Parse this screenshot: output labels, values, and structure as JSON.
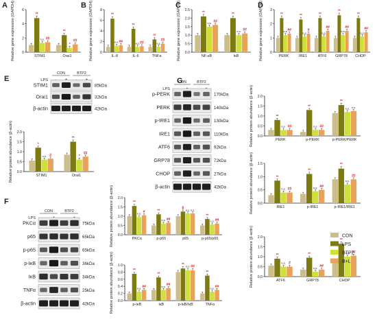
{
  "colors": {
    "CON": "#cdbd8a",
    "LPS": "#7c7a10",
    "BTP2": "#cfe03a",
    "B+L": "#e9a25a",
    "axis": "#222222",
    "star": "#d42a2a",
    "ns": "#555555"
  },
  "legend": {
    "items": [
      "CON",
      "LPS",
      "BTP2",
      "B+L"
    ]
  },
  "blot_common": {
    "lps_label": "LPS",
    "con_label": "CON",
    "btp2_label": "BTP2",
    "lps_signs": [
      "-",
      "+",
      "-",
      "+"
    ]
  },
  "blots": [
    {
      "id": "E",
      "label": "E",
      "rows": [
        {
          "name": "STIM1",
          "kda": "85kDa",
          "intensity": [
            0.45,
            0.9,
            0.35,
            0.6
          ]
        },
        {
          "name": "Orai1",
          "kda": "32kDa",
          "intensity": [
            0.55,
            0.95,
            0.45,
            0.75
          ]
        },
        {
          "name": "β-actin",
          "kda": "42kDa",
          "intensity": [
            0.9,
            0.9,
            0.9,
            0.9
          ]
        }
      ]
    },
    {
      "id": "F",
      "label": "F",
      "rows": [
        {
          "name": "PKCα",
          "kda": "75kDa",
          "intensity": [
            0.7,
            0.9,
            0.7,
            0.8
          ]
        },
        {
          "name": "p65",
          "kda": "65kDa",
          "intensity": [
            0.75,
            0.8,
            0.75,
            0.8
          ]
        },
        {
          "name": "p-p65",
          "kda": "65kDa",
          "intensity": [
            0.5,
            0.95,
            0.55,
            0.6
          ]
        },
        {
          "name": "p-IκB",
          "kda": "36kDa",
          "intensity": [
            0.4,
            0.95,
            0.45,
            0.55
          ]
        },
        {
          "name": "IκB",
          "kda": "34kDa",
          "intensity": [
            0.8,
            0.6,
            0.75,
            0.7
          ]
        },
        {
          "name": "TNFα",
          "kda": "25kDa",
          "intensity": [
            0.4,
            0.85,
            0.45,
            0.55
          ]
        },
        {
          "name": "β-actin",
          "kda": "42kDa",
          "intensity": [
            0.9,
            0.9,
            0.9,
            0.9
          ]
        }
      ]
    },
    {
      "id": "G",
      "label": "G",
      "rows": [
        {
          "name": "p-PERK",
          "kda": "170kDa",
          "intensity": [
            0.4,
            0.9,
            0.3,
            0.4
          ]
        },
        {
          "name": "PERK",
          "kda": "140kDa",
          "intensity": [
            0.7,
            0.85,
            0.6,
            0.65
          ]
        },
        {
          "name": "p-IRE1",
          "kda": "130kDa",
          "intensity": [
            0.4,
            0.95,
            0.35,
            0.45
          ]
        },
        {
          "name": "IRE1",
          "kda": "110kDa",
          "intensity": [
            0.5,
            0.95,
            0.45,
            0.5
          ]
        },
        {
          "name": "ATF6",
          "kda": "92kDa",
          "intensity": [
            0.5,
            0.9,
            0.45,
            0.55
          ]
        },
        {
          "name": "GRP78",
          "kda": "72kDa",
          "intensity": [
            0.5,
            0.9,
            0.5,
            0.55
          ]
        },
        {
          "name": "CHOP",
          "kda": "27kDa",
          "intensity": [
            0.45,
            0.9,
            0.4,
            0.5
          ]
        },
        {
          "name": "β-actin",
          "kda": "42kDa",
          "intensity": [
            0.9,
            0.9,
            0.9,
            0.9
          ]
        }
      ]
    }
  ],
  "chart_data": [
    {
      "id": "A",
      "label": "A",
      "type": "bar",
      "title": "",
      "xlabel": "",
      "ylabel": "Relative gene expression (GAPDH)",
      "ylim": [
        0,
        6
      ],
      "yticks": [
        0,
        2,
        4,
        6
      ],
      "categories": [
        "STIM1",
        "Orai1"
      ],
      "series": [
        {
          "name": "CON",
          "values": [
            1.0,
            1.0
          ]
        },
        {
          "name": "LPS",
          "values": [
            4.8,
            2.4
          ]
        },
        {
          "name": "BTP2",
          "values": [
            1.3,
            0.6
          ]
        },
        {
          "name": "B+L",
          "values": [
            1.4,
            1.1
          ]
        }
      ],
      "annotations": [
        [
          "",
          "**",
          "n.s.",
          "##"
        ],
        [
          "",
          "**",
          "*",
          "##"
        ]
      ]
    },
    {
      "id": "B",
      "label": "B",
      "type": "bar",
      "title": "",
      "xlabel": "",
      "ylabel": "Relative gene expression (GAPDH)",
      "ylim": [
        0,
        8
      ],
      "yticks": [
        0,
        2,
        4,
        6,
        8
      ],
      "categories": [
        "IL-8",
        "IL-6",
        "TNFα"
      ],
      "series": [
        {
          "name": "CON",
          "values": [
            1.0,
            1.0,
            1.0
          ]
        },
        {
          "name": "LPS",
          "values": [
            6.3,
            4.4,
            2.4
          ]
        },
        {
          "name": "BTP2",
          "values": [
            1.2,
            1.0,
            1.0
          ]
        },
        {
          "name": "B+L",
          "values": [
            1.3,
            1.1,
            1.6
          ]
        }
      ],
      "annotations": [
        [
          "",
          "**",
          "n.s.",
          "##"
        ],
        [
          "",
          "**",
          "n.s.",
          "##"
        ],
        [
          "",
          "**",
          "n.s.",
          "##"
        ]
      ]
    },
    {
      "id": "C",
      "label": "C",
      "type": "bar",
      "title": "",
      "xlabel": "",
      "ylabel": "Relative gene expression (GAPDH)",
      "ylim": [
        0,
        2.5
      ],
      "yticks": [
        0.0,
        0.5,
        1.0,
        1.5,
        2.0,
        2.5
      ],
      "categories": [
        "NF-κB",
        "IκB"
      ],
      "series": [
        {
          "name": "CON",
          "values": [
            1.0,
            1.0
          ]
        },
        {
          "name": "LPS",
          "values": [
            2.1,
            2.0
          ]
        },
        {
          "name": "BTP2",
          "values": [
            1.5,
            1.0
          ]
        },
        {
          "name": "B+L",
          "values": [
            1.6,
            1.1
          ]
        }
      ],
      "annotations": [
        [
          "",
          "**",
          "n.s.",
          "##"
        ],
        [
          "",
          "**",
          "n.s.",
          "##"
        ]
      ]
    },
    {
      "id": "D",
      "label": "D",
      "type": "bar",
      "title": "",
      "xlabel": "",
      "ylabel": "Relative gene expression (GAPDH)",
      "ylim": [
        0,
        3
      ],
      "yticks": [
        0,
        1,
        2,
        3
      ],
      "categories": [
        "PERK",
        "IRE1",
        "ATF6",
        "GRP78",
        "CHOP"
      ],
      "series": [
        {
          "name": "CON",
          "values": [
            1.0,
            1.0,
            1.0,
            1.0,
            1.0
          ]
        },
        {
          "name": "LPS",
          "values": [
            2.4,
            2.3,
            2.4,
            2.6,
            2.4
          ]
        },
        {
          "name": "BTP2",
          "values": [
            1.2,
            1.1,
            1.1,
            1.2,
            1.1
          ]
        },
        {
          "name": "B+L",
          "values": [
            1.3,
            1.3,
            1.5,
            1.5,
            1.4
          ]
        }
      ],
      "annotations": [
        [
          "",
          "**",
          "n.s.",
          "##"
        ],
        [
          "",
          "**",
          "n.s.",
          "#"
        ],
        [
          "",
          "**",
          "n.s.",
          "##"
        ],
        [
          "",
          "**",
          "n.s.",
          "##"
        ],
        [
          "",
          "**",
          "n.s.",
          "##"
        ]
      ]
    },
    {
      "id": "E2",
      "label": "",
      "type": "bar",
      "title": "",
      "xlabel": "",
      "ylabel": "Relative protein abundance (β-actin)",
      "ylim": [
        0,
        2.0
      ],
      "yticks": [
        0.0,
        0.5,
        1.0,
        1.5,
        2.0
      ],
      "categories": [
        "STIM1",
        "Orai1"
      ],
      "series": [
        {
          "name": "CON",
          "values": [
            0.55,
            0.85
          ]
        },
        {
          "name": "LPS",
          "values": [
            1.2,
            1.5
          ]
        },
        {
          "name": "BTP2",
          "values": [
            0.6,
            0.6
          ]
        },
        {
          "name": "B+L",
          "values": [
            0.65,
            0.75
          ]
        }
      ],
      "annotations": [
        [
          "",
          "*",
          "n.s.",
          "#"
        ],
        [
          "",
          "**",
          "*",
          "##"
        ]
      ]
    },
    {
      "id": "F1",
      "label": "",
      "type": "bar",
      "title": "",
      "xlabel": "",
      "ylabel": "Relative protein abundance (β-actin)",
      "ylim": [
        0,
        2.0
      ],
      "yticks": [
        0.0,
        0.5,
        1.0,
        1.5,
        2.0
      ],
      "categories": [
        "PKCα",
        "p-p65",
        "p65",
        "p-p65/p65"
      ],
      "series": [
        {
          "name": "CON",
          "values": [
            1.0,
            0.5,
            1.0,
            0.5
          ]
        },
        {
          "name": "LPS",
          "values": [
            1.55,
            1.1,
            1.25,
            0.85
          ]
        },
        {
          "name": "BTP2",
          "values": [
            0.95,
            0.6,
            1.15,
            0.55
          ]
        },
        {
          "name": "B+L",
          "values": [
            1.05,
            0.65,
            1.15,
            0.6
          ]
        }
      ],
      "annotations": [
        [
          "",
          "**",
          "n.s.",
          "#"
        ],
        [
          "",
          "**",
          "n.s.",
          "##"
        ],
        [
          "",
          "$",
          "n.s.",
          "n.s."
        ],
        [
          "",
          "**",
          "n.s.",
          "##"
        ]
      ]
    },
    {
      "id": "F2",
      "label": "",
      "type": "bar",
      "title": "",
      "xlabel": "",
      "ylabel": "Relative protein abundance (β-actin)",
      "ylim": [
        0,
        1.0
      ],
      "yticks": [
        0.0,
        0.2,
        0.4,
        0.6,
        0.8,
        1.0
      ],
      "categories": [
        "p-IκB",
        "IκB",
        "p-IκB/IκB",
        "TNFα"
      ],
      "series": [
        {
          "name": "CON",
          "values": [
            0.2,
            0.3,
            0.8,
            0.2
          ]
        },
        {
          "name": "LPS",
          "values": [
            0.75,
            0.65,
            0.9,
            0.7
          ]
        },
        {
          "name": "BTP2",
          "values": [
            0.25,
            0.3,
            0.85,
            0.25
          ]
        },
        {
          "name": "B+L",
          "values": [
            0.3,
            0.35,
            0.85,
            0.3
          ]
        }
      ],
      "annotations": [
        [
          "",
          "**",
          "n.s.",
          "##"
        ],
        [
          "",
          "**",
          "n.s.",
          "##"
        ],
        [
          "",
          "**",
          "n.s.",
          "##"
        ],
        [
          "",
          "**",
          "n.s.",
          "##"
        ]
      ]
    },
    {
      "id": "G1",
      "label": "",
      "type": "bar",
      "title": "",
      "xlabel": "",
      "ylabel": "Relative protein abundance (β-actin)",
      "ylim": [
        0,
        2.0
      ],
      "yticks": [
        0.0,
        0.5,
        1.0,
        1.5,
        2.0
      ],
      "categories": [
        "PERK",
        "p-PERK",
        "p-PERK/PERK"
      ],
      "series": [
        {
          "name": "CON",
          "values": [
            0.3,
            0.2,
            1.15
          ]
        },
        {
          "name": "LPS",
          "values": [
            0.8,
            1.3,
            1.55
          ]
        },
        {
          "name": "BTP2",
          "values": [
            0.3,
            0.3,
            1.2
          ]
        },
        {
          "name": "B+L",
          "values": [
            0.3,
            0.3,
            1.25
          ]
        }
      ],
      "annotations": [
        [
          "",
          "**",
          "n.s.",
          "##"
        ],
        [
          "",
          "**",
          "n.s.",
          "##"
        ],
        [
          "",
          "**",
          "n.s.",
          "n.s."
        ]
      ]
    },
    {
      "id": "G2",
      "label": "",
      "type": "bar",
      "title": "",
      "xlabel": "",
      "ylabel": "Relative protein abundance (β-actin)",
      "ylim": [
        0,
        1.5
      ],
      "yticks": [
        0.0,
        0.5,
        1.0,
        1.5
      ],
      "categories": [
        "IRE1",
        "p-IRE1",
        "p-IRE1/IRE1"
      ],
      "series": [
        {
          "name": "CON",
          "values": [
            0.3,
            0.35,
            0.9
          ]
        },
        {
          "name": "LPS",
          "values": [
            0.85,
            1.1,
            1.3
          ]
        },
        {
          "name": "BTP2",
          "values": [
            0.4,
            0.45,
            0.7
          ]
        },
        {
          "name": "B+L",
          "values": [
            0.4,
            0.5,
            0.9
          ]
        }
      ],
      "annotations": [
        [
          "",
          "**",
          "n.s.",
          "##"
        ],
        [
          "",
          "**",
          "n.s.",
          "##"
        ],
        [
          "",
          "**",
          "n.s.",
          "##"
        ]
      ]
    },
    {
      "id": "G3",
      "label": "",
      "type": "bar",
      "title": "",
      "xlabel": "",
      "ylabel": "Relative protein abundance (β-actin)",
      "ylim": [
        0,
        2.0
      ],
      "yticks": [
        0.0,
        0.5,
        1.0,
        1.5,
        2.0
      ],
      "categories": [
        "ATF6",
        "GRP78",
        "CHOP"
      ],
      "series": [
        {
          "name": "CON",
          "values": [
            0.55,
            0.35,
            0.8
          ]
        },
        {
          "name": "LPS",
          "values": [
            0.9,
            0.95,
            1.65
          ]
        },
        {
          "name": "BTP2",
          "values": [
            0.5,
            0.25,
            1.0
          ]
        },
        {
          "name": "B+L",
          "values": [
            0.5,
            0.35,
            1.05
          ]
        }
      ],
      "annotations": [
        [
          "",
          "**",
          "n.s.",
          "#"
        ],
        [
          "",
          "**",
          "n.s.",
          "##"
        ],
        [
          "",
          "**",
          "n.s.",
          "##"
        ]
      ]
    }
  ]
}
